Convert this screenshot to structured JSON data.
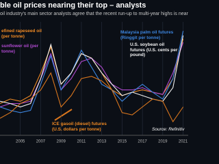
{
  "chart_data": {
    "type": "line",
    "title": "ble oil prices nearing their top – analysts",
    "subtitle": "oil industry's main sector analysts agree that the recent run-up to multi-year highs is near",
    "source": "Source: Refinitiv",
    "x": [
      2003,
      2004,
      2005,
      2006,
      2007,
      2008,
      2009,
      2010,
      2011,
      2012,
      2013,
      2014,
      2015,
      2016,
      2017,
      2018,
      2019,
      2020,
      2021
    ],
    "xlim": [
      2003,
      2021.5
    ],
    "xticks": [
      2005,
      2007,
      2009,
      2011,
      2013,
      2015,
      2017,
      2019,
      2021
    ],
    "ylim": [
      0,
      100
    ],
    "grid": true,
    "series": [
      {
        "name": "efined rapeseed oil (per tonne)",
        "color": "#f08a24",
        "values": [
          28,
          32,
          30,
          35,
          55,
          78,
          45,
          55,
          72,
          68,
          55,
          40,
          35,
          38,
          40,
          38,
          36,
          50,
          85
        ]
      },
      {
        "name": "sunflower oil (per tonne)",
        "color": "#b04ad0",
        "values": [
          25,
          28,
          28,
          30,
          50,
          72,
          40,
          50,
          65,
          68,
          60,
          45,
          40,
          40,
          42,
          38,
          36,
          55,
          82
        ]
      },
      {
        "name": "Malaysia palm oil futures (Ringgit per tonne)",
        "color": "#3d86e0",
        "values": [
          25,
          22,
          20,
          22,
          45,
          70,
          40,
          55,
          75,
          60,
          45,
          40,
          30,
          38,
          45,
          38,
          32,
          50,
          92
        ]
      },
      {
        "name": "U.S. soybean oil futures (U.S. cents per pound)",
        "color": "#f2f2f2",
        "values": [
          30,
          28,
          25,
          28,
          50,
          80,
          45,
          55,
          72,
          68,
          55,
          45,
          35,
          38,
          35,
          32,
          30,
          42,
          88
        ]
      },
      {
        "name": "ICE gasoil (diesel) futures (U.S. dollars per tonne)",
        "color": "#d9761e",
        "values": [
          15,
          20,
          28,
          32,
          40,
          55,
          25,
          35,
          50,
          52,
          48,
          40,
          20,
          18,
          25,
          32,
          30,
          12,
          25
        ]
      }
    ]
  }
}
